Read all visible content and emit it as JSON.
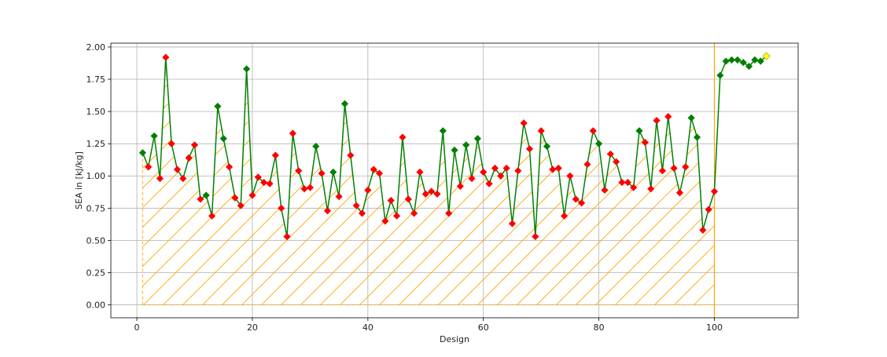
{
  "chart_data": {
    "type": "line",
    "xlabel": "Design",
    "ylabel": "SEA in [kJ/kg]",
    "xlim": [
      -4.5,
      114.5
    ],
    "ylim": [
      -0.1,
      2.03
    ],
    "xticks": [
      0,
      20,
      40,
      60,
      80,
      100
    ],
    "yticks": [
      "0.00",
      "0.25",
      "0.50",
      "0.75",
      "1.00",
      "1.25",
      "1.50",
      "1.75",
      "2.00"
    ],
    "grid": true,
    "line_color": "#008000",
    "marker_colors": {
      "green": "#008000",
      "red": "#ff0000",
      "yellow": "#ffff00"
    },
    "hatch_color": "#ffa500",
    "hatched_region": {
      "x_start": 1,
      "x_end": 100
    },
    "series": [
      {
        "x": [
          1,
          2,
          3,
          4,
          5,
          6,
          7,
          8,
          9,
          10,
          11,
          12,
          13,
          14,
          15,
          16,
          17,
          18,
          19,
          20,
          21,
          22,
          23,
          24,
          25,
          26,
          27,
          28,
          29,
          30,
          31,
          32,
          33,
          34,
          35,
          36,
          37,
          38,
          39,
          40,
          41,
          42,
          43,
          44,
          45,
          46,
          47,
          48,
          49,
          50,
          51,
          52,
          53,
          54,
          55,
          56,
          57,
          58,
          59,
          60,
          61,
          62,
          63,
          64,
          65,
          66,
          67,
          68,
          69,
          70,
          71,
          72,
          73,
          74,
          75,
          76,
          77,
          78,
          79,
          80,
          81,
          82,
          83,
          84,
          85,
          86,
          87,
          88,
          89,
          90,
          91,
          92,
          93,
          94,
          95,
          96,
          97,
          98,
          99,
          100,
          101,
          102,
          103,
          104,
          105,
          106,
          107,
          108,
          109
        ],
        "y": [
          1.18,
          1.07,
          1.31,
          0.98,
          1.92,
          1.25,
          1.05,
          0.98,
          1.14,
          1.24,
          0.82,
          0.85,
          0.69,
          1.54,
          1.29,
          1.07,
          0.83,
          0.77,
          1.83,
          0.85,
          0.99,
          0.95,
          0.94,
          1.16,
          0.75,
          0.53,
          1.33,
          1.04,
          0.9,
          0.91,
          1.23,
          1.02,
          0.73,
          1.03,
          0.84,
          1.56,
          1.16,
          0.77,
          0.71,
          0.89,
          1.05,
          1.02,
          0.65,
          0.81,
          0.69,
          1.3,
          0.82,
          0.71,
          1.03,
          0.86,
          0.88,
          0.86,
          1.35,
          0.71,
          1.2,
          0.92,
          1.24,
          0.98,
          1.29,
          1.03,
          0.94,
          1.06,
          1.0,
          1.06,
          0.63,
          1.04,
          1.41,
          1.21,
          0.53,
          1.35,
          1.23,
          1.05,
          1.06,
          0.69,
          1.0,
          0.82,
          0.79,
          1.09,
          1.35,
          1.25,
          0.89,
          1.17,
          1.11,
          0.95,
          0.95,
          0.91,
          1.35,
          1.26,
          0.9,
          1.43,
          1.04,
          1.46,
          1.06,
          0.87,
          1.07,
          1.45,
          1.3,
          0.58,
          0.74,
          0.88,
          1.78,
          1.89,
          1.9,
          1.9,
          1.88,
          1.85,
          1.9,
          1.89,
          1.93
        ],
        "marker_color": [
          "green",
          "red",
          "green",
          "red",
          "red",
          "red",
          "red",
          "red",
          "red",
          "red",
          "red",
          "green",
          "red",
          "green",
          "green",
          "red",
          "red",
          "red",
          "green",
          "red",
          "red",
          "red",
          "red",
          "red",
          "red",
          "red",
          "red",
          "red",
          "red",
          "red",
          "green",
          "red",
          "red",
          "green",
          "red",
          "green",
          "red",
          "red",
          "red",
          "red",
          "red",
          "red",
          "red",
          "red",
          "red",
          "red",
          "red",
          "red",
          "red",
          "red",
          "red",
          "red",
          "green",
          "red",
          "green",
          "red",
          "green",
          "red",
          "green",
          "red",
          "red",
          "red",
          "red",
          "red",
          "red",
          "red",
          "red",
          "red",
          "red",
          "red",
          "green",
          "red",
          "red",
          "red",
          "red",
          "red",
          "red",
          "red",
          "red",
          "green",
          "red",
          "red",
          "red",
          "red",
          "red",
          "red",
          "green",
          "red",
          "red",
          "red",
          "red",
          "red",
          "red",
          "red",
          "red",
          "green",
          "green",
          "red",
          "red",
          "red",
          "green",
          "green",
          "green",
          "green",
          "green",
          "green",
          "green",
          "green",
          "yellow"
        ]
      }
    ]
  }
}
